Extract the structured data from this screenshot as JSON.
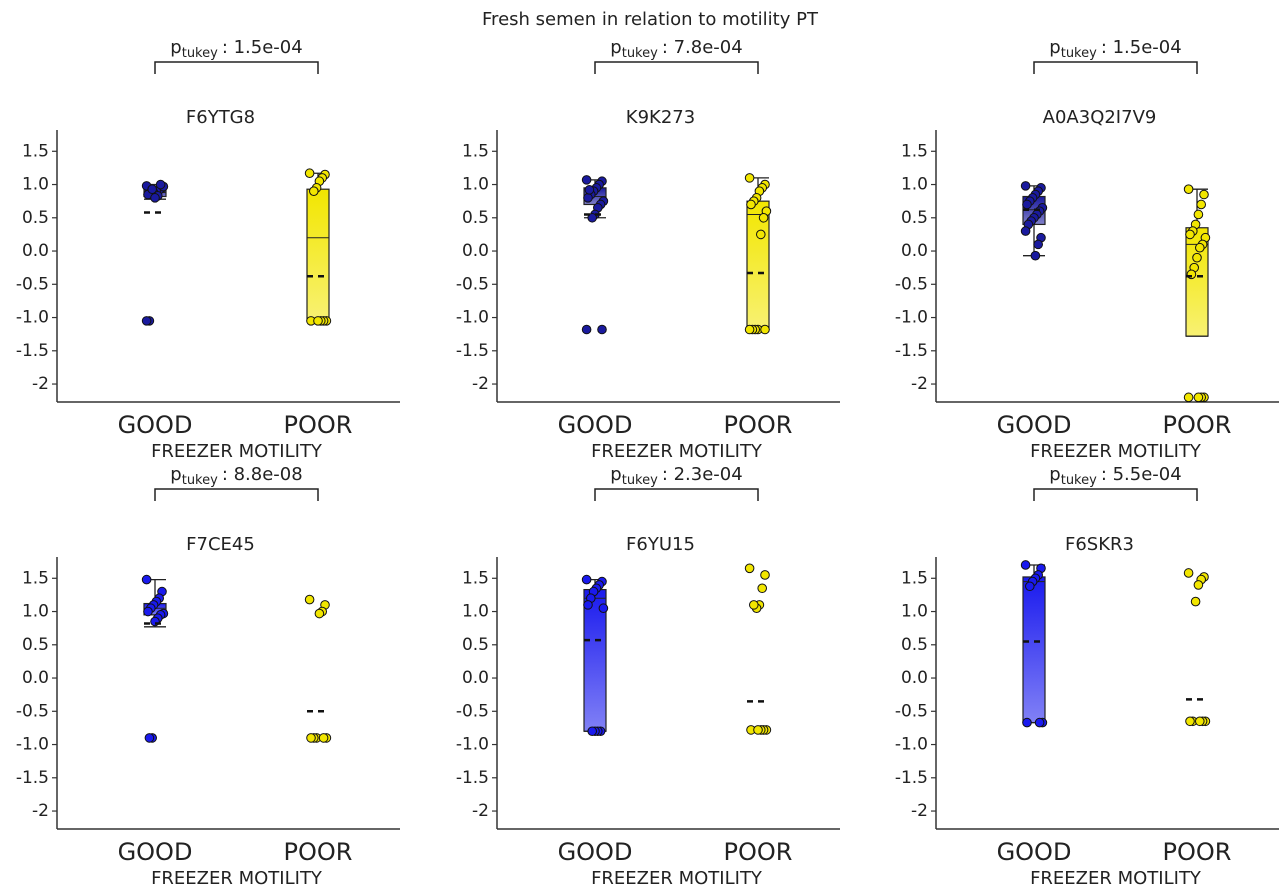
{
  "title": "Fresh semen in relation to motility PT",
  "chart_data": [
    {
      "type": "box",
      "title": "F6YTG8",
      "xlabel": "FREEZER MOTILITY",
      "annotation": {
        "symbol": "p",
        "subscript": "tukey",
        "text": ": 1.5e-04"
      },
      "categories": [
        "GOOD",
        "POOR"
      ],
      "ylim": [
        -2.27,
        1.82
      ],
      "yticks": [
        -2,
        -1.5,
        {
          "value": -1,
          "label": "-1.0"
        },
        -0.5,
        {
          "value": 0,
          "label": "0.0"
        },
        0.5,
        {
          "value": 1,
          "label": "1.0"
        },
        1.5
      ],
      "boxes": [
        {
          "color": "#1a1a9e",
          "whisker_low": 0.78,
          "q1": 0.82,
          "median": 0.88,
          "q3": 0.93,
          "whisker_high": 1.0,
          "mean": 0.58,
          "points": [
            0.98,
            0.95,
            0.92,
            0.9,
            0.88,
            0.86,
            0.85,
            0.97,
            1.0,
            0.83,
            0.8,
            0.93,
            -1.05,
            -1.05
          ]
        },
        {
          "color": "#f2e600",
          "whisker_low": -1.05,
          "q1": -1.05,
          "median": 0.2,
          "q3": 0.93,
          "whisker_high": 1.17,
          "mean": -0.38,
          "points": [
            1.17,
            1.15,
            1.1,
            1.05,
            0.95,
            0.9,
            -1.05,
            -1.05,
            -1.05,
            -1.05,
            -1.05
          ]
        }
      ]
    },
    {
      "type": "box",
      "title": "K9K273",
      "xlabel": "FREEZER MOTILITY",
      "annotation": {
        "symbol": "p",
        "subscript": "tukey",
        "text": ": 7.8e-04"
      },
      "categories": [
        "GOOD",
        "POOR"
      ],
      "ylim": [
        -2.27,
        1.82
      ],
      "yticks": [
        -2,
        -1.5,
        {
          "value": -1,
          "label": "-1.0"
        },
        -0.5,
        {
          "value": 0,
          "label": "0.0"
        },
        0.5,
        {
          "value": 1,
          "label": "1.0"
        },
        1.5
      ],
      "boxes": [
        {
          "color": "#1a1a9e",
          "whisker_low": 0.5,
          "q1": 0.7,
          "median": 0.82,
          "q3": 0.95,
          "whisker_high": 1.07,
          "mean": 0.55,
          "points": [
            1.07,
            1.05,
            1.0,
            0.95,
            0.9,
            0.85,
            0.8,
            0.75,
            0.7,
            0.65,
            0.55,
            0.5,
            0.92,
            -1.18,
            -1.18
          ]
        },
        {
          "color": "#f2e600",
          "whisker_low": -1.18,
          "q1": -1.18,
          "median": 0.55,
          "q3": 0.75,
          "whisker_high": 1.1,
          "mean": -0.33,
          "points": [
            1.1,
            1.0,
            0.95,
            0.9,
            0.8,
            0.75,
            0.7,
            0.6,
            0.5,
            0.25,
            -1.18,
            -1.18,
            -1.18,
            -1.18,
            -1.18
          ]
        }
      ]
    },
    {
      "type": "box",
      "title": "A0A3Q2I7V9",
      "xlabel": "FREEZER MOTILITY",
      "annotation": {
        "symbol": "p",
        "subscript": "tukey",
        "text": ": 1.5e-04"
      },
      "categories": [
        "GOOD",
        "POOR"
      ],
      "ylim": [
        -2.27,
        1.82
      ],
      "yticks": [
        -2,
        -1.5,
        {
          "value": -1,
          "label": "-1.0"
        },
        -0.5,
        {
          "value": 0,
          "label": "0.0"
        },
        0.5,
        {
          "value": 1,
          "label": "1.0"
        },
        1.5
      ],
      "boxes": [
        {
          "color": "#1a1a9e",
          "whisker_low": -0.07,
          "q1": 0.4,
          "median": 0.62,
          "q3": 0.82,
          "whisker_high": 0.98,
          "mean": 0.62,
          "points": [
            0.98,
            0.95,
            0.9,
            0.85,
            0.8,
            0.75,
            0.7,
            0.65,
            0.6,
            0.55,
            0.5,
            0.45,
            0.4,
            0.3,
            0.2,
            0.1,
            -0.07
          ]
        },
        {
          "color": "#f2e600",
          "whisker_low": -1.28,
          "q1": -1.28,
          "median": 0.1,
          "q3": 0.35,
          "whisker_high": 0.93,
          "mean": -0.38,
          "points": [
            0.93,
            0.85,
            0.7,
            0.55,
            0.4,
            0.3,
            0.25,
            0.2,
            0.1,
            0.05,
            -0.1,
            -0.25,
            -0.35,
            -2.2,
            -2.2,
            -2.2,
            -2.2
          ]
        }
      ]
    },
    {
      "type": "box",
      "title": "F7CE45",
      "xlabel": "FREEZER MOTILITY",
      "annotation": {
        "symbol": "p",
        "subscript": "tukey",
        "text": ": 8.8e-08"
      },
      "categories": [
        "GOOD",
        "POOR"
      ],
      "ylim": [
        -2.27,
        1.82
      ],
      "yticks": [
        -2,
        -1.5,
        {
          "value": -1,
          "label": "-1.0"
        },
        -0.5,
        {
          "value": 0,
          "label": "0.0"
        },
        0.5,
        {
          "value": 1,
          "label": "1.0"
        },
        1.5
      ],
      "boxes": [
        {
          "color": "#1a1aee",
          "whisker_low": 0.77,
          "q1": 0.95,
          "median": 1.05,
          "q3": 1.12,
          "whisker_high": 1.48,
          "mean": 0.82,
          "points": [
            1.48,
            1.3,
            1.2,
            1.15,
            1.1,
            1.05,
            1.0,
            0.97,
            0.95,
            0.9,
            0.85,
            -0.9,
            -0.9
          ]
        },
        {
          "color": "#f2e600",
          "whisker_low": -0.9,
          "q1": -0.9,
          "median": -0.9,
          "q3": -0.9,
          "whisker_high": -0.9,
          "mean": -0.5,
          "points": [
            1.18,
            1.1,
            1.0,
            0.97,
            -0.9,
            -0.9,
            -0.9,
            -0.9,
            -0.9
          ]
        }
      ]
    },
    {
      "type": "box",
      "title": "F6YU15",
      "xlabel": "FREEZER MOTILITY",
      "annotation": {
        "symbol": "p",
        "subscript": "tukey",
        "text": ": 2.3e-04"
      },
      "categories": [
        "GOOD",
        "POOR"
      ],
      "ylim": [
        -2.27,
        1.82
      ],
      "yticks": [
        -2,
        -1.5,
        {
          "value": -1,
          "label": "-1.0"
        },
        -0.5,
        {
          "value": 0,
          "label": "0.0"
        },
        0.5,
        {
          "value": 1,
          "label": "1.0"
        },
        1.5
      ],
      "boxes": [
        {
          "color": "#1a1aee",
          "whisker_low": -0.8,
          "q1": -0.8,
          "median": 1.2,
          "q3": 1.33,
          "whisker_high": 1.48,
          "mean": 0.57,
          "points": [
            1.48,
            1.45,
            1.4,
            1.35,
            1.3,
            1.2,
            1.1,
            1.05,
            -0.8,
            -0.8,
            -0.8,
            -0.8
          ]
        },
        {
          "color": "#f2e600",
          "whisker_low": -0.78,
          "q1": -0.78,
          "median": -0.78,
          "q3": -0.78,
          "whisker_high": -0.78,
          "mean": -0.35,
          "points": [
            1.65,
            1.55,
            1.35,
            1.1,
            1.05,
            1.1,
            -0.78,
            -0.78,
            -0.78,
            -0.78,
            -0.78
          ]
        }
      ]
    },
    {
      "type": "box",
      "title": "F6SKR3",
      "xlabel": "FREEZER MOTILITY",
      "annotation": {
        "symbol": "p",
        "subscript": "tukey",
        "text": ": 5.5e-04"
      },
      "categories": [
        "GOOD",
        "POOR"
      ],
      "ylim": [
        -2.27,
        1.82
      ],
      "yticks": [
        -2,
        -1.5,
        {
          "value": -1,
          "label": "-1.0"
        },
        -0.5,
        {
          "value": 0,
          "label": "0.0"
        },
        0.5,
        {
          "value": 1,
          "label": "1.0"
        },
        1.5
      ],
      "boxes": [
        {
          "color": "#1a1aee",
          "whisker_low": -0.67,
          "q1": -0.67,
          "median": 1.45,
          "q3": 1.52,
          "whisker_high": 1.7,
          "mean": 0.55,
          "points": [
            1.7,
            1.65,
            1.55,
            1.5,
            1.45,
            1.38,
            -0.67,
            -0.67,
            -0.67
          ]
        },
        {
          "color": "#f2e600",
          "whisker_low": -0.65,
          "q1": -0.65,
          "median": -0.65,
          "q3": -0.65,
          "whisker_high": -0.65,
          "mean": -0.32,
          "points": [
            1.58,
            1.52,
            1.48,
            1.4,
            1.15,
            -0.65,
            -0.65,
            -0.65,
            -0.65,
            -0.65
          ]
        }
      ]
    }
  ]
}
